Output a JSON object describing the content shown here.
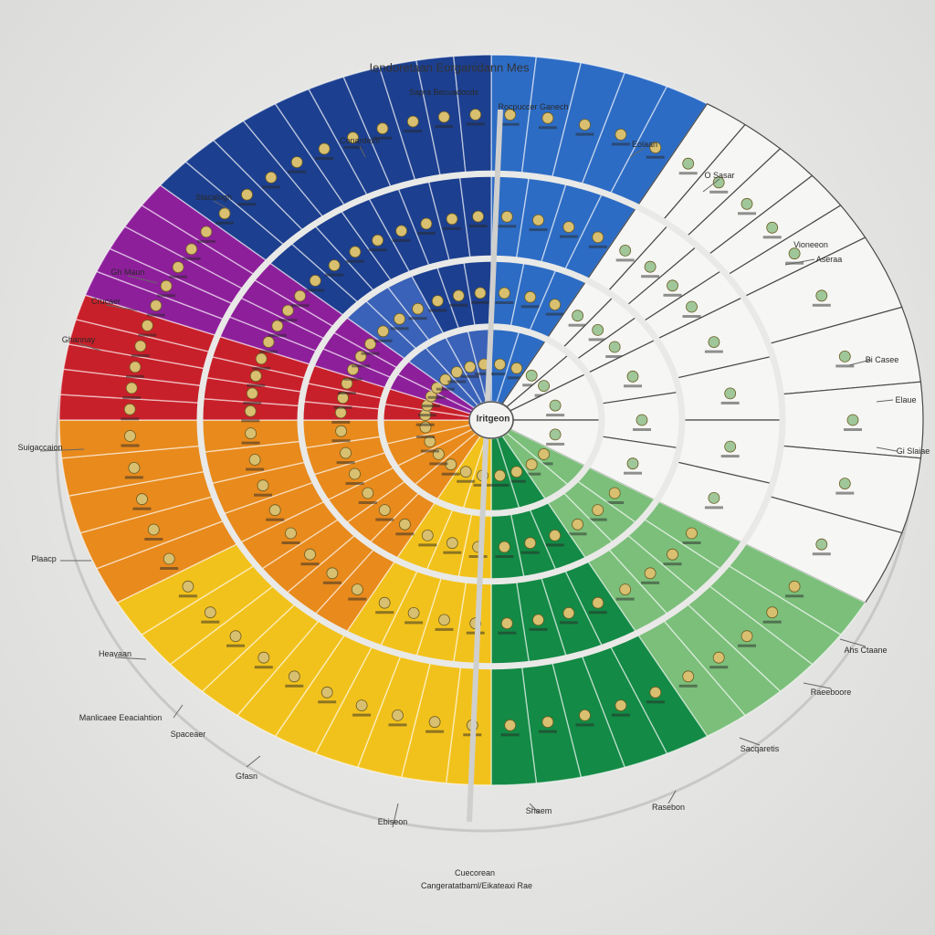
{
  "title": "Iendoretaan Eorganidann Mes",
  "subtitle": "Sapra Becuadocds",
  "center_label": "Iritgeon",
  "top_label": "Rocpuccer Ganech",
  "bottom_label": "Cuecorean",
  "bottom_sub": "Cangeratatbaml/Eikateaxi Rae",
  "outer_labels": [
    "Conardeim",
    "Stacalogh",
    "Gh Maun",
    "Crucaer",
    "Ghannay",
    "Suigaccaion",
    "Plaacp",
    "Heavaan",
    "Manlicaee Eeaciahtion",
    "Spaceaer",
    "Gfasn",
    "Ebiseon",
    "Shaem",
    "Rasebon",
    "Sacqaretis",
    "Raeeboore",
    "Ahs Ctaane",
    "Gi Slaiae",
    "Elaue",
    "Bi Casee",
    "Aseraa",
    "Vioneeon",
    "O Sasar",
    "Eolaan"
  ],
  "colors": {
    "blue_dark": "#1c3f8f",
    "blue_mid": "#3a62b8",
    "blue_light": "#2d6cc4",
    "purple": "#8e1f9b",
    "red": "#c8202a",
    "orange": "#e88a1c",
    "yellow": "#f2c21c",
    "green_dark": "#138a45",
    "green_light": "#7bbf7a",
    "white": "#f6f6f4",
    "outline": "#c8c8c6"
  }
}
